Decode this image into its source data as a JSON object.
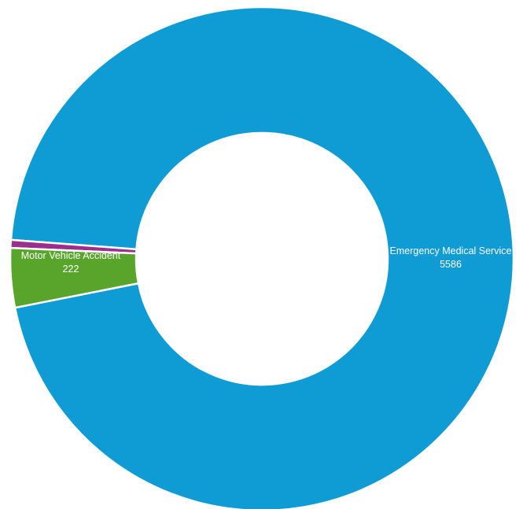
{
  "chart_data": {
    "type": "pie",
    "variant": "donut",
    "title": "",
    "slices": [
      {
        "label": "Emergency Medical Service",
        "value": 5586,
        "color": "#0f9bd3",
        "show_label": true
      },
      {
        "label": "",
        "value": 30,
        "color": "#9b2e8f",
        "show_label": false
      },
      {
        "label": "Motor Vehicle Accident",
        "value": 222,
        "color": "#59a52c",
        "show_label": true
      }
    ],
    "legend": "none",
    "data_labels": "category and value"
  }
}
